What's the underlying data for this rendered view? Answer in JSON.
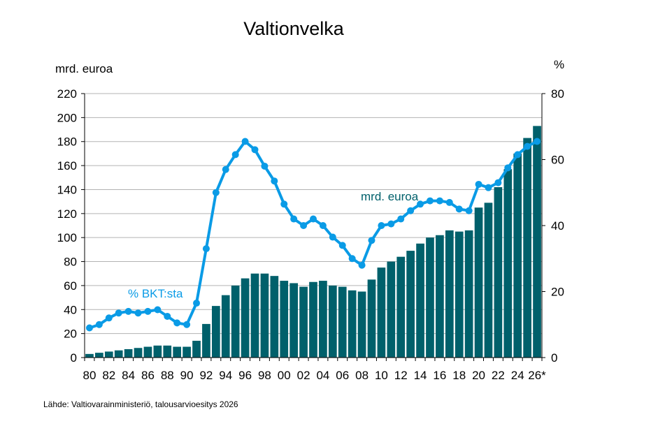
{
  "chart_data": {
    "type": "bar+line",
    "title": "Valtionvelka",
    "left_unit": "mrd. euroa",
    "right_unit": "%",
    "source": "Lähde: Valtiovarainministeriö, talousarvioesitys 2026",
    "x_tick_labels": [
      "80",
      "82",
      "84",
      "86",
      "88",
      "90",
      "92",
      "94",
      "96",
      "98",
      "00",
      "02",
      "04",
      "06",
      "08",
      "10",
      "12",
      "14",
      "16",
      "18",
      "20",
      "22",
      "24",
      "26*"
    ],
    "left_axis": {
      "ylim": [
        0,
        220
      ],
      "ticks": [
        0,
        20,
        40,
        60,
        80,
        100,
        120,
        140,
        160,
        180,
        200,
        220
      ]
    },
    "right_axis": {
      "ylim": [
        0,
        80
      ],
      "ticks": [
        0,
        20,
        40,
        60,
        80
      ]
    },
    "grid": true,
    "years": [
      1980,
      1981,
      1982,
      1983,
      1984,
      1985,
      1986,
      1987,
      1988,
      1989,
      1990,
      1991,
      1992,
      1993,
      1994,
      1995,
      1996,
      1997,
      1998,
      1999,
      2000,
      2001,
      2002,
      2003,
      2004,
      2005,
      2006,
      2007,
      2008,
      2009,
      2010,
      2011,
      2012,
      2013,
      2014,
      2015,
      2016,
      2017,
      2018,
      2019,
      2020,
      2021,
      2022,
      2023,
      2024,
      2025,
      2026
    ],
    "series": [
      {
        "name": "mrd. euroa",
        "kind": "bar",
        "axis": "left",
        "color": "#00606B",
        "values": [
          3,
          4,
          5,
          6,
          7,
          8,
          9,
          10,
          10,
          9,
          9,
          14,
          28,
          43,
          52,
          60,
          66,
          70,
          70,
          68,
          64,
          62,
          59,
          63,
          64,
          60,
          59,
          56,
          55,
          65,
          75,
          80,
          84,
          89,
          95,
          100,
          102,
          106,
          105,
          106,
          125,
          129,
          142,
          157,
          170,
          183,
          193
        ]
      },
      {
        "name": "% BKT:sta",
        "kind": "line",
        "axis": "right",
        "color": "#0A9BE6",
        "values": [
          9,
          10,
          12,
          13.5,
          14,
          13.5,
          14,
          14.5,
          12.5,
          10.5,
          10,
          16.5,
          33,
          50,
          57,
          61.5,
          65.5,
          63,
          58,
          53.5,
          46.5,
          42,
          40,
          42,
          40,
          36.5,
          34,
          30,
          28,
          35.5,
          40,
          40.5,
          42,
          44.5,
          46.5,
          47.5,
          47.5,
          47,
          45,
          44.5,
          52.5,
          51.5,
          53,
          57.5,
          61.5,
          64,
          65.5
        ]
      }
    ]
  }
}
